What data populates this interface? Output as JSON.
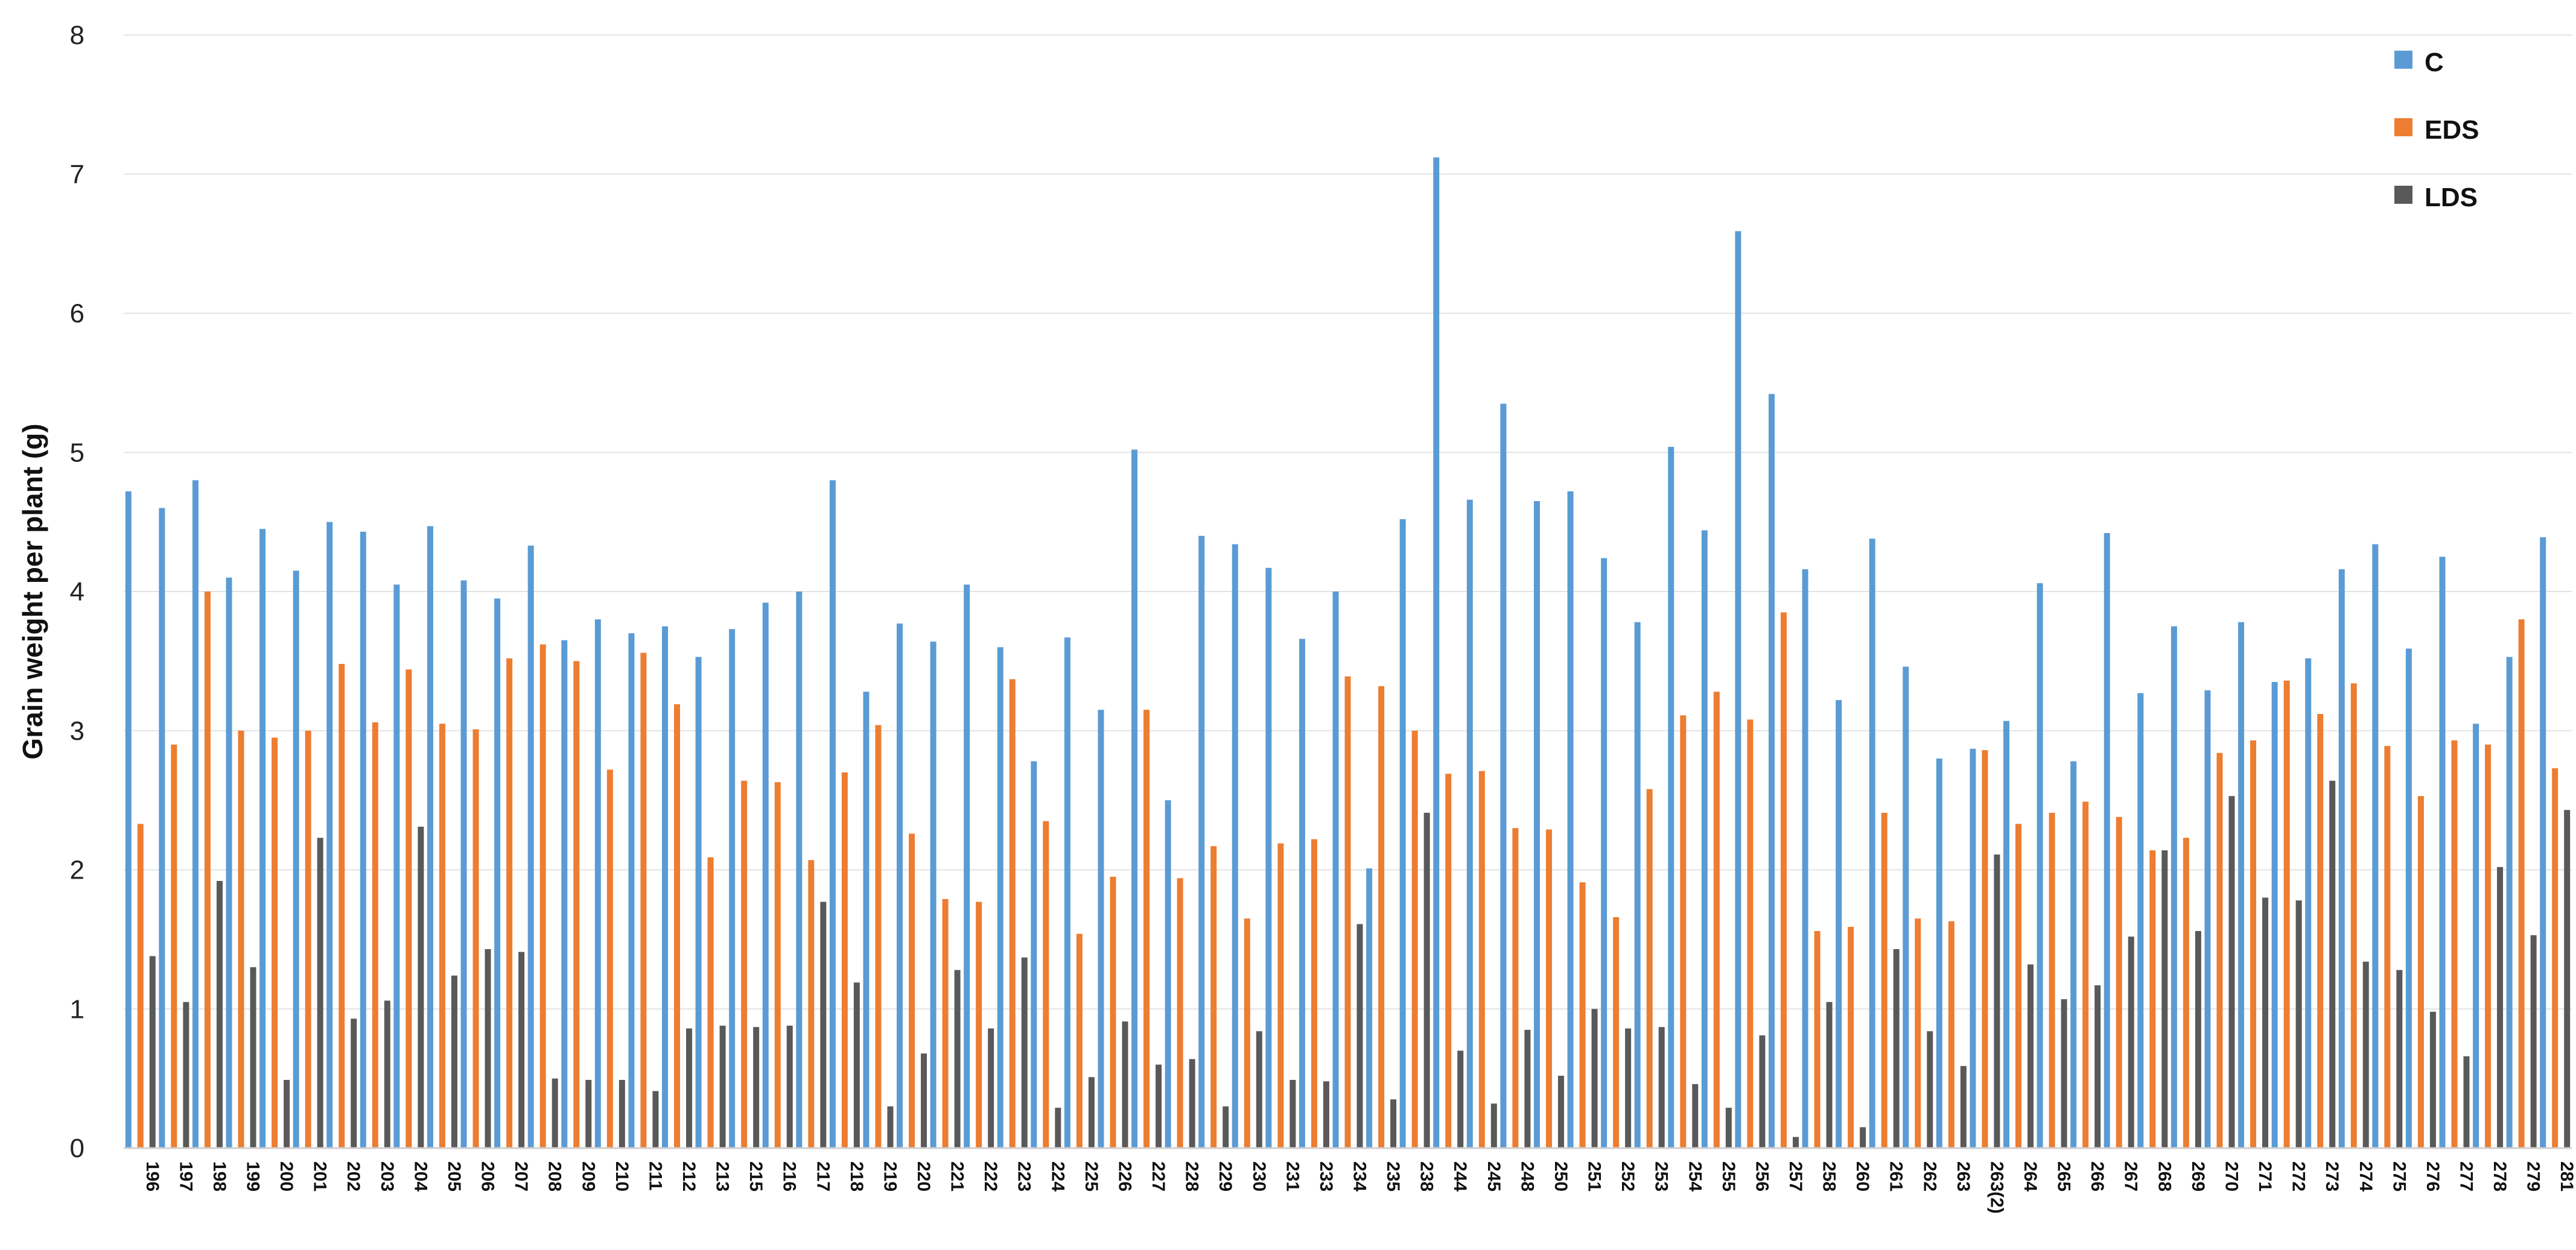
{
  "chart_data": {
    "type": "bar",
    "title": "",
    "xlabel": "",
    "ylabel": "Grain weight per plant (g)",
    "ylim": [
      0,
      8
    ],
    "yticks": [
      "0",
      "1",
      "2",
      "3",
      "4",
      "5",
      "6",
      "7",
      "8"
    ],
    "grid": true,
    "legend_position": "top-right",
    "categories": [
      "196",
      "197",
      "198",
      "199",
      "200",
      "201",
      "202",
      "203",
      "204",
      "205",
      "206",
      "207",
      "208",
      "209",
      "210",
      "211",
      "212",
      "213",
      "215",
      "216",
      "217",
      "218",
      "219",
      "220",
      "221",
      "222",
      "223",
      "224",
      "225",
      "226",
      "227",
      "228",
      "229",
      "230",
      "231",
      "233",
      "234",
      "235",
      "238",
      "244",
      "245",
      "248",
      "250",
      "251",
      "252",
      "253",
      "254",
      "255",
      "256",
      "257",
      "258",
      "260",
      "261",
      "262",
      "263",
      "263(2)",
      "264",
      "265",
      "266",
      "267",
      "268",
      "269",
      "270",
      "271",
      "272",
      "273",
      "274",
      "275",
      "276",
      "277",
      "278",
      "279",
      "281"
    ],
    "series": [
      {
        "name": "C",
        "color": "#5B9BD5",
        "values": [
          4.72,
          4.6,
          4.8,
          4.1,
          4.45,
          4.15,
          4.5,
          4.43,
          4.05,
          4.47,
          4.08,
          3.95,
          4.33,
          3.65,
          3.8,
          3.7,
          3.75,
          3.53,
          3.73,
          3.92,
          4.0,
          4.8,
          3.28,
          3.77,
          3.64,
          4.05,
          3.6,
          2.78,
          3.67,
          3.15,
          5.02,
          2.5,
          4.4,
          4.34,
          4.17,
          3.66,
          4.0,
          2.01,
          4.52,
          7.12,
          4.66,
          5.35,
          4.65,
          4.72,
          4.24,
          3.78,
          5.04,
          4.44,
          6.59,
          5.42,
          4.16,
          3.22,
          4.38,
          3.46,
          2.8,
          2.87,
          3.07,
          4.06,
          2.78,
          4.42,
          3.27,
          3.75,
          3.29,
          3.78,
          3.35,
          3.52,
          4.16,
          4.34,
          3.59,
          4.25,
          3.05,
          3.53,
          4.39
        ]
      },
      {
        "name": "EDS",
        "color": "#ED7D31",
        "values": [
          2.33,
          2.9,
          4.0,
          3.0,
          2.95,
          3.0,
          3.48,
          3.06,
          3.44,
          3.05,
          3.01,
          3.52,
          3.62,
          3.5,
          2.72,
          3.56,
          3.19,
          2.09,
          2.64,
          2.63,
          2.07,
          2.7,
          3.04,
          2.26,
          1.79,
          1.77,
          3.37,
          2.35,
          1.54,
          1.95,
          3.15,
          1.94,
          2.17,
          1.65,
          2.19,
          2.22,
          3.39,
          3.32,
          3.0,
          2.69,
          2.71,
          2.3,
          2.29,
          1.91,
          1.66,
          2.58,
          3.11,
          3.28,
          3.08,
          3.85,
          1.56,
          1.59,
          2.41,
          1.65,
          1.63,
          2.86,
          2.33,
          2.41,
          2.49,
          2.38,
          2.14,
          2.23,
          2.84,
          2.93,
          3.36,
          3.12,
          3.34,
          2.89,
          2.53,
          2.93,
          2.9,
          3.8,
          2.73
        ]
      },
      {
        "name": "LDS",
        "color": "#595959",
        "values": [
          1.38,
          1.05,
          1.92,
          1.3,
          0.49,
          2.23,
          0.93,
          1.06,
          2.31,
          1.24,
          1.43,
          1.41,
          0.5,
          0.49,
          0.49,
          0.41,
          0.86,
          0.88,
          0.87,
          0.88,
          1.77,
          1.19,
          0.3,
          0.68,
          1.28,
          0.86,
          1.37,
          0.29,
          0.51,
          0.91,
          0.6,
          0.64,
          0.3,
          0.84,
          0.49,
          0.48,
          1.61,
          0.35,
          2.41,
          0.7,
          0.32,
          0.85,
          0.52,
          1.0,
          0.86,
          0.87,
          0.46,
          0.29,
          0.81,
          0.08,
          1.05,
          0.15,
          1.43,
          0.84,
          0.59,
          2.11,
          1.32,
          1.07,
          1.17,
          1.52,
          2.14,
          1.56,
          2.53,
          1.8,
          1.78,
          2.64,
          1.34,
          1.28,
          0.98,
          0.66,
          2.02,
          1.53,
          2.43
        ]
      }
    ]
  }
}
